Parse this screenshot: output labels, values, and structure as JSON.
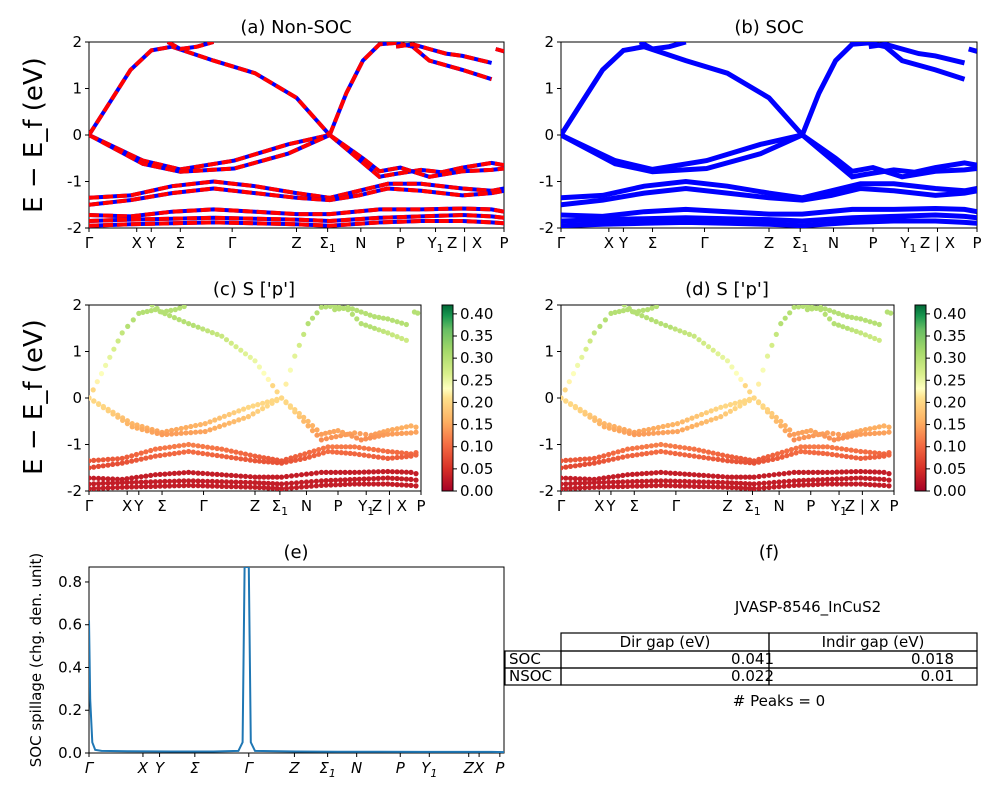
{
  "chart_data": [
    {
      "id": "a",
      "type": "line",
      "title": "(a) Non-SOC",
      "ylabel": "E − E_f (eV)",
      "ylim": [
        -2,
        2
      ],
      "yticks": [
        -2,
        -1,
        0,
        1,
        2
      ],
      "kpoints": [
        "Γ",
        "X",
        "Y",
        "Σ",
        "Γ",
        "Z",
        "Σ1",
        "N",
        "P",
        "Y1",
        "Z | X",
        "P"
      ],
      "series": [
        {
          "band": "b1",
          "x": [
            0,
            0.13,
            0.22,
            0.35,
            0.48,
            0.58
          ],
          "y": [
            0,
            -0.55,
            -0.74,
            -0.55,
            -0.2,
            0
          ]
        },
        {
          "band": "b2",
          "x": [
            0,
            0.13,
            0.22,
            0.35,
            0.48,
            0.58
          ],
          "y": [
            0,
            -0.62,
            -0.79,
            -0.72,
            -0.4,
            0
          ]
        },
        {
          "band": "b3",
          "x": [
            0,
            0.05,
            0.1,
            0.15,
            0.2,
            0.3,
            0.4,
            0.5,
            0.58
          ],
          "y": [
            0,
            0.7,
            1.4,
            1.82,
            1.9,
            1.6,
            1.33,
            0.8,
            0
          ]
        },
        {
          "band": "b4",
          "x": [
            0.58,
            0.62,
            0.66,
            0.7,
            0.74,
            0.78,
            0.82,
            0.9,
            0.97
          ],
          "y": [
            0,
            0.9,
            1.6,
            1.95,
            1.98,
            1.9,
            1.6,
            1.4,
            1.2
          ]
        },
        {
          "band": "b5",
          "x": [
            0.58,
            0.62,
            0.66,
            0.7,
            0.73,
            0.8,
            0.85,
            0.9,
            0.97,
            1.0
          ],
          "y": [
            0,
            -0.3,
            -0.6,
            -0.9,
            -0.85,
            -0.75,
            -0.8,
            -0.7,
            -0.6,
            -0.65
          ]
        },
        {
          "band": "b6",
          "x": [
            0.58,
            0.62,
            0.66,
            0.7,
            0.75,
            0.82,
            0.9,
            0.97,
            1.0
          ],
          "y": [
            0,
            -0.25,
            -0.5,
            -0.78,
            -0.7,
            -0.9,
            -0.78,
            -0.75,
            -0.72
          ]
        },
        {
          "band": "b7",
          "x": [
            0,
            0.1,
            0.2,
            0.3,
            0.4,
            0.5,
            0.58,
            0.65,
            0.72,
            0.8,
            0.9,
            0.97,
            1.0
          ],
          "y": [
            -1.35,
            -1.3,
            -1.1,
            -1.0,
            -1.1,
            -1.25,
            -1.35,
            -1.2,
            -1.05,
            -1.05,
            -1.15,
            -1.2,
            -1.15
          ]
        },
        {
          "band": "b8",
          "x": [
            0,
            0.1,
            0.2,
            0.3,
            0.4,
            0.5,
            0.58,
            0.65,
            0.72,
            0.8,
            0.9,
            0.97,
            1.0
          ],
          "y": [
            -1.5,
            -1.4,
            -1.25,
            -1.15,
            -1.25,
            -1.35,
            -1.4,
            -1.3,
            -1.15,
            -1.2,
            -1.3,
            -1.25,
            -1.2
          ]
        },
        {
          "band": "b9",
          "x": [
            0,
            0.1,
            0.2,
            0.3,
            0.4,
            0.5,
            0.58,
            0.7,
            0.8,
            0.9,
            0.97,
            1.0
          ],
          "y": [
            -1.72,
            -1.75,
            -1.65,
            -1.6,
            -1.65,
            -1.7,
            -1.7,
            -1.6,
            -1.6,
            -1.58,
            -1.6,
            -1.65
          ]
        },
        {
          "band": "b10",
          "x": [
            0,
            0.1,
            0.2,
            0.3,
            0.4,
            0.5,
            0.58,
            0.7,
            0.8,
            0.9,
            0.97,
            1.0
          ],
          "y": [
            -1.85,
            -1.82,
            -1.8,
            -1.78,
            -1.8,
            -1.82,
            -1.85,
            -1.78,
            -1.75,
            -1.72,
            -1.75,
            -1.78
          ]
        },
        {
          "band": "b11",
          "x": [
            0,
            0.1,
            0.2,
            0.3,
            0.4,
            0.5,
            0.58,
            0.7,
            0.8,
            0.9,
            0.97,
            1.0
          ],
          "y": [
            -1.95,
            -1.92,
            -1.9,
            -1.88,
            -1.9,
            -1.92,
            -1.95,
            -1.88,
            -1.85,
            -1.85,
            -1.88,
            -1.9
          ]
        },
        {
          "band": "b12",
          "x": [
            0.74,
            0.78,
            0.82,
            0.86,
            0.9,
            0.97
          ],
          "y": [
            1.9,
            1.95,
            1.85,
            1.75,
            1.7,
            1.55
          ]
        },
        {
          "band": "b13",
          "x": [
            0.19,
            0.22,
            0.26,
            0.3
          ],
          "y": [
            2.0,
            1.85,
            1.9,
            2.0
          ]
        },
        {
          "band": "b14",
          "x": [
            0.98,
            1.0
          ],
          "y": [
            1.85,
            1.8
          ]
        }
      ],
      "style": {
        "color": "#ff0000",
        "secondary": "#0000ff",
        "dashed": true
      }
    },
    {
      "id": "b",
      "type": "line",
      "title": "(b) SOC",
      "ylim": [
        -2,
        2
      ],
      "yticks": [
        -2,
        -1,
        0,
        1,
        2
      ],
      "kpoints": [
        "Γ",
        "X",
        "Y",
        "Σ",
        "Γ",
        "Z",
        "Σ1",
        "N",
        "P",
        "Y1",
        "Z | X",
        "P"
      ],
      "style": {
        "color": "#0000ff",
        "dashed": false
      }
    },
    {
      "id": "c",
      "type": "scatter",
      "title": "(c)  S ['p']",
      "ylabel": "E − E_f (eV)",
      "ylim": [
        -2,
        2
      ],
      "yticks": [
        -2,
        -1,
        0,
        1,
        2
      ],
      "kpoints": [
        "Γ",
        "X",
        "Y",
        "Σ",
        "Γ",
        "Z",
        "Σ1",
        "N",
        "P",
        "Y1",
        "Z | X",
        "P"
      ],
      "colorbar": {
        "min": 0.0,
        "max": 0.42,
        "ticks": [
          "0.00",
          "0.05",
          "0.10",
          "0.15",
          "0.20",
          "0.25",
          "0.30",
          "0.35",
          "0.40"
        ],
        "cmap": "RdYlGn"
      }
    },
    {
      "id": "d",
      "type": "scatter",
      "title": "(d) S ['p']",
      "ylim": [
        -2,
        2
      ],
      "yticks": [
        -2,
        -1,
        0,
        1,
        2
      ],
      "kpoints": [
        "Γ",
        "X",
        "Y",
        "Σ",
        "Γ",
        "Z",
        "Σ1",
        "N",
        "P",
        "Y1",
        "Z | X",
        "P"
      ],
      "colorbar": {
        "min": 0.0,
        "max": 0.42,
        "ticks": [
          "0.00",
          "0.05",
          "0.10",
          "0.15",
          "0.20",
          "0.25",
          "0.30",
          "0.35",
          "0.40"
        ],
        "cmap": "RdYlGn"
      }
    },
    {
      "id": "e",
      "type": "line",
      "title": "(e)",
      "ylabel": "SOC spillage (chg. den. unit)",
      "ylim": [
        0,
        0.87
      ],
      "yticks": [
        "0.0",
        "0.2",
        "0.4",
        "0.6",
        "0.8"
      ],
      "kpoints": [
        "Γ",
        "X",
        "Y",
        "Σ",
        "Γ",
        "Z",
        "Σ1",
        "N",
        "P",
        "Y1",
        "Z",
        "X",
        "P"
      ],
      "x": [
        0,
        0.003,
        0.008,
        0.015,
        0.03,
        0.1,
        0.2,
        0.3,
        0.36,
        0.37,
        0.375,
        0.38,
        0.385,
        0.39,
        0.4,
        0.5,
        0.6,
        0.7,
        0.8,
        0.9,
        0.97,
        1.0
      ],
      "y": [
        0.62,
        0.25,
        0.05,
        0.015,
        0.01,
        0.008,
        0.007,
        0.007,
        0.01,
        0.05,
        0.87,
        0.87,
        0.87,
        0.05,
        0.01,
        0.007,
        0.006,
        0.006,
        0.005,
        0.005,
        0.005,
        0.004
      ],
      "color": "#1f77b4"
    },
    {
      "id": "f",
      "type": "table",
      "title": "(f)",
      "caption": "JVASP-8546_InCuS2",
      "columns": [
        "Dir gap (eV)",
        "Indir gap (eV)"
      ],
      "rows": [
        {
          "label": "SOC",
          "dir": "0.041",
          "indir": "0.018"
        },
        {
          "label": "NSOC",
          "dir": "0.022",
          "indir": "0.01"
        }
      ],
      "footer": "# Peaks = 0"
    }
  ]
}
